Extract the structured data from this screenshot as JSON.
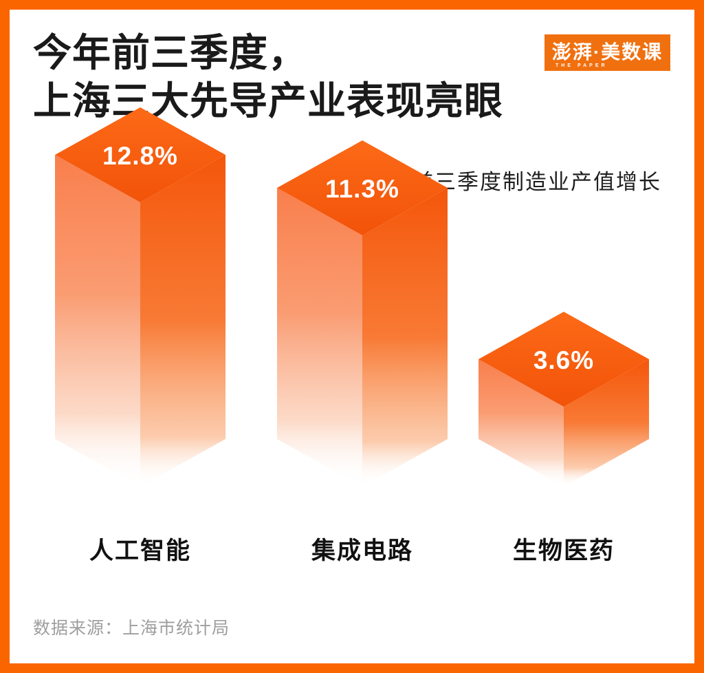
{
  "header": {
    "title_line1": "今年前三季度，",
    "title_line2": "上海三大先导产业表现亮眼"
  },
  "logo": {
    "main": "澎湃·美数课",
    "sub": "THE PAPER"
  },
  "chart_data": {
    "type": "bar",
    "style": "3d-isometric-gradient-columns",
    "title": "2025年前三季度制造业产值增长",
    "categories": [
      "人工智能",
      "集成电路",
      "生物医药"
    ],
    "values": [
      12.8,
      11.3,
      3.6
    ],
    "value_labels": [
      "12.8%",
      "11.3%",
      "3.6%"
    ],
    "unit": "%",
    "xlabel": "",
    "ylabel": "",
    "axes": "none",
    "grid": false,
    "legend": "none"
  },
  "footer": {
    "source": "数据来源：上海市统计局"
  },
  "colors": {
    "frame_border": "#FA6500",
    "logo_bg": "#F0700F",
    "logo_text": "#FFFFFF",
    "bar_top_start": "#FC6A17",
    "bar_top_end": "#F25309",
    "bar_left_top": "#F97F4C",
    "bar_left_mid": "#FA9C72",
    "bar_right_top": "#F4570B",
    "bar_right_mid": "#F87A35",
    "fade_to": "#FFFFFF",
    "title_text": "#1A1A1A",
    "value_label_text": "#FFFFFF",
    "category_text": "#111111",
    "source_text": "#9E9E9E"
  }
}
